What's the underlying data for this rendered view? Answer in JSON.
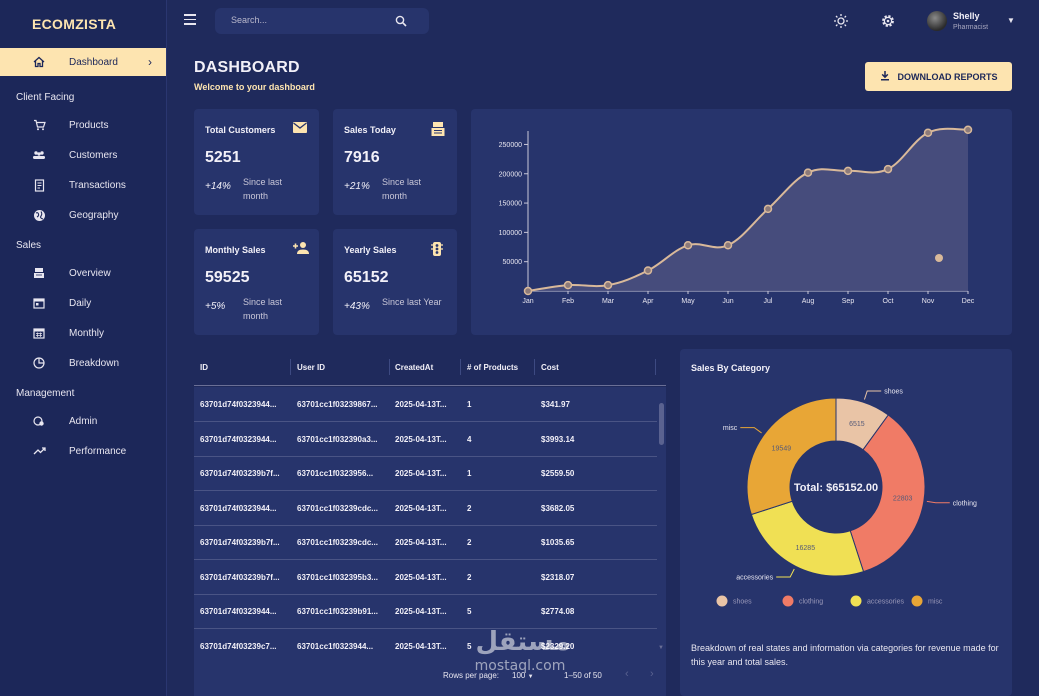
{
  "brand": "ECOMZISTA",
  "sidebar": {
    "dashboard": "Dashboard",
    "sections": {
      "client_facing": "Client Facing",
      "sales": "Sales",
      "management": "Management"
    },
    "items": {
      "products": "Products",
      "customers": "Customers",
      "transactions": "Transactions",
      "geography": "Geography",
      "overview": "Overview",
      "daily": "Daily",
      "monthly": "Monthly",
      "breakdown": "Breakdown",
      "admin": "Admin",
      "performance": "Performance"
    }
  },
  "topbar": {
    "search_placeholder": "Search...",
    "user_name": "Shelly",
    "user_role": "Pharmacist"
  },
  "header": {
    "title": "DASHBOARD",
    "subtitle": "Welcome to your dashboard",
    "download_label": "DOWNLOAD REPORTS"
  },
  "stats": {
    "total_customers": {
      "title": "Total Customers",
      "value": "5251",
      "increase": "+14%",
      "since": "Since last month"
    },
    "sales_today": {
      "title": "Sales Today",
      "value": "7916",
      "increase": "+21%",
      "since": "Since last month"
    },
    "monthly_sales": {
      "title": "Monthly Sales",
      "value": "59525",
      "increase": "+5%",
      "since": "Since last month"
    },
    "yearly_sales": {
      "title": "Yearly Sales",
      "value": "65152",
      "increase": "+43%",
      "since": "Since last Year"
    }
  },
  "table": {
    "headers": [
      "ID",
      "User ID",
      "CreatedAt",
      "# of Products",
      "Cost"
    ],
    "rows": [
      [
        "63701d74f0323944...",
        "63701cc1f03239867...",
        "2025-04-13T...",
        "1",
        "$341.97"
      ],
      [
        "63701d74f0323944...",
        "63701cc1f032390a3...",
        "2025-04-13T...",
        "4",
        "$3993.14"
      ],
      [
        "63701d74f03239b7f...",
        "63701cc1f0323956...",
        "2025-04-13T...",
        "1",
        "$2559.50"
      ],
      [
        "63701d74f0323944...",
        "63701cc1f03239cdc...",
        "2025-04-13T...",
        "2",
        "$3682.05"
      ],
      [
        "63701d74f03239b7f...",
        "63701cc1f03239cdc...",
        "2025-04-13T...",
        "2",
        "$1035.65"
      ],
      [
        "63701d74f03239b7f...",
        "63701cc1f032395b3...",
        "2025-04-13T...",
        "2",
        "$2318.07"
      ],
      [
        "63701d74f0323944...",
        "63701cc1f03239b91...",
        "2025-04-13T...",
        "5",
        "$2774.08"
      ],
      [
        "63701d74f03239c7...",
        "63701cc1f0323944...",
        "2025-04-13T...",
        "5",
        "$2329.20"
      ]
    ],
    "rows_per_page_label": "Rows per page:",
    "rows_per_page": "100",
    "range": "1–50 of 50"
  },
  "donut": {
    "title": "Sales By Category",
    "total_label": "Total: $65152.00",
    "description": "Breakdown of real states and information via categories for revenue made for this year and total sales."
  },
  "watermark": {
    "text": "mostaql.com"
  },
  "colors": {
    "background": "#1f2a5c",
    "card": "#27346c",
    "accent": "#fde4b0",
    "line": "#d9b99a"
  },
  "chart_data": [
    {
      "type": "area",
      "x": [
        "Jan",
        "Feb",
        "Mar",
        "Apr",
        "May",
        "Jun",
        "Jul",
        "Aug",
        "Sep",
        "Oct",
        "Nov",
        "Dec"
      ],
      "values": [
        0,
        10000,
        10000,
        35000,
        78000,
        78000,
        140000,
        202000,
        205000,
        208000,
        270000,
        275000
      ],
      "yticks": [
        50000,
        100000,
        150000,
        200000,
        250000
      ],
      "ylim": [
        0,
        290000
      ],
      "legend": "bottom-right"
    },
    {
      "type": "pie",
      "categories": [
        "shoes",
        "clothing",
        "accessories",
        "misc"
      ],
      "values": [
        6515,
        22803,
        16285,
        19549
      ],
      "colors": [
        "#e9c4a6",
        "#f07b66",
        "#f0e054",
        "#e8a636"
      ],
      "legend": "bottom"
    }
  ]
}
